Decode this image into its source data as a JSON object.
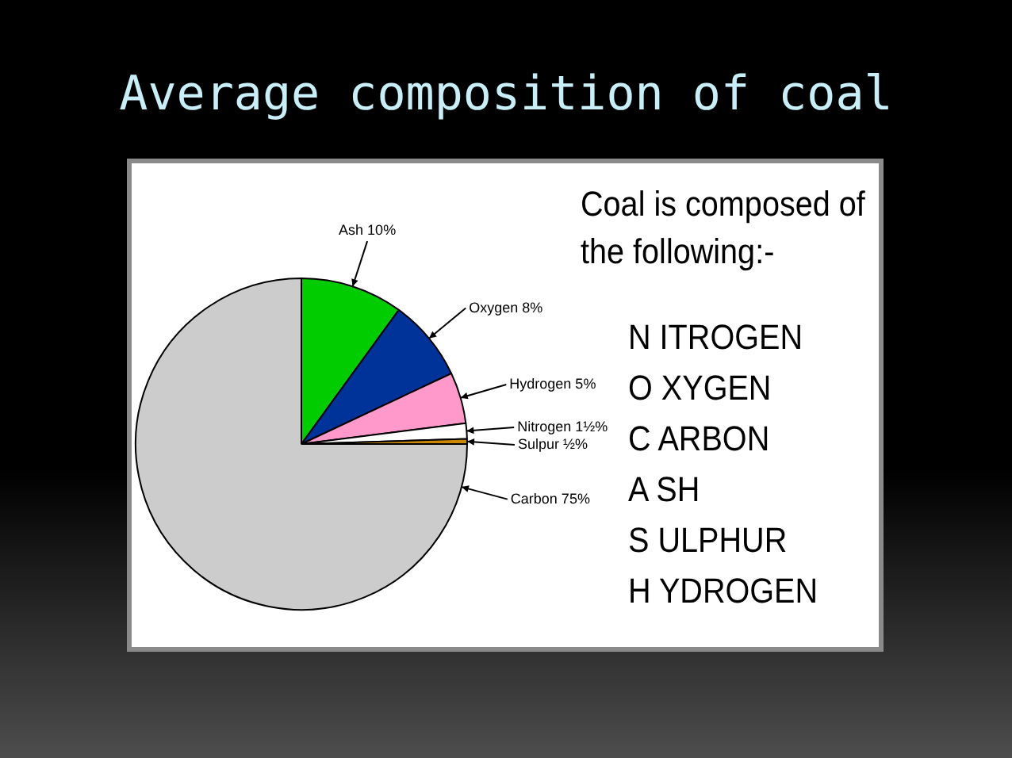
{
  "chart_data": {
    "type": "pie",
    "title": "Average composition of coal",
    "categories": [
      "Ash",
      "Oxygen",
      "Hydrogen",
      "Nitrogen",
      "Sulpur",
      "Carbon"
    ],
    "values": [
      10,
      8,
      5,
      1.5,
      0.5,
      75
    ],
    "value_labels": [
      "10%",
      "8%",
      "5%",
      "1½%",
      "½%",
      "75%"
    ],
    "colors": [
      "#00cc00",
      "#003399",
      "#ff99cc",
      "#ffffff",
      "#cc8800",
      "#cccccc"
    ],
    "annotations": [
      "Coal is composed of the following:-",
      "N ITROGEN",
      "O XYGEN",
      "C ARBON",
      "A SH",
      "S ULPHUR",
      "H YDROGEN"
    ]
  }
}
